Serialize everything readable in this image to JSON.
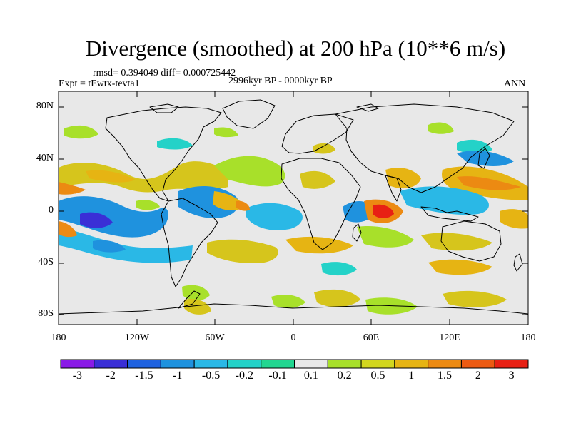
{
  "figure": {
    "title": "Divergence (smoothed) at 200 hPa (10**6 m/s)",
    "stats": "rmsd= 0.394049 diff= 0.000725442",
    "experiment": "Expt = tEwtx-tevta1",
    "period": "2996kyr BP - 0000kyr BP",
    "season": "ANN"
  },
  "map": {
    "lat_ticks": [
      "80N",
      "40N",
      "0",
      "40S",
      "80S"
    ],
    "lon_ticks": [
      "180",
      "120W",
      "60W",
      "0",
      "60E",
      "120E",
      "180"
    ]
  },
  "colorbar": {
    "labels": [
      "-3",
      "-2",
      "-1.5",
      "-1",
      "-0.5",
      "-0.2",
      "-0.1",
      "0.1",
      "0.2",
      "0.5",
      "1",
      "1.5",
      "2",
      "3"
    ],
    "colors": [
      "#8a1be6",
      "#3a2fd6",
      "#1f62e0",
      "#1f92de",
      "#2ab8e6",
      "#24d2c8",
      "#22d690",
      "#e8e8e8",
      "#a8e02a",
      "#d2d61e",
      "#e6b413",
      "#ec8a12",
      "#ec5a12",
      "#e82014"
    ]
  },
  "colors": {
    "land_ocean_fill": "#e8e8e8",
    "coast": "#000000"
  }
}
